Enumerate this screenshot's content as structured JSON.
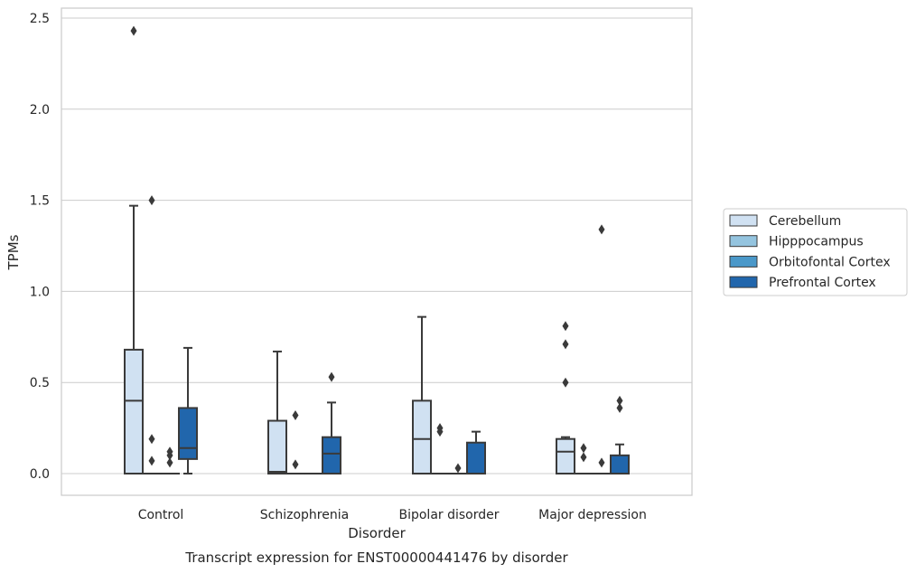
{
  "chart_data": {
    "type": "boxplot",
    "title": "Transcript expression for ENST00000441476 by disorder",
    "xlabel": "Disorder",
    "ylabel": "TPMs",
    "ylim": [
      -0.12,
      2.56
    ],
    "yticks": [
      0.0,
      0.5,
      1.0,
      1.5,
      2.0,
      2.5
    ],
    "ytick_labels": [
      "0.0",
      "0.5",
      "1.0",
      "1.5",
      "2.0",
      "2.5"
    ],
    "grid": "horizontal",
    "legend_position": "right",
    "categories": [
      "Control",
      "Schizophrenia",
      "Bipolar disorder",
      "Major depression"
    ],
    "series": [
      {
        "name": "Cerebellum",
        "color": "#d0e1f2",
        "boxes": [
          {
            "q1": 0.0,
            "median": 0.4,
            "q3": 0.68,
            "whisker_low": 0.0,
            "whisker_high": 1.47,
            "outliers": [
              2.43
            ]
          },
          {
            "q1": 0.0,
            "median": 0.01,
            "q3": 0.29,
            "whisker_low": 0.0,
            "whisker_high": 0.67,
            "outliers": []
          },
          {
            "q1": 0.0,
            "median": 0.19,
            "q3": 0.4,
            "whisker_low": 0.0,
            "whisker_high": 0.86,
            "outliers": []
          },
          {
            "q1": 0.0,
            "median": 0.12,
            "q3": 0.19,
            "whisker_low": 0.0,
            "whisker_high": 0.2,
            "outliers": [
              0.5,
              0.71,
              0.81
            ]
          }
        ]
      },
      {
        "name": "Hipppocampus",
        "color": "#94c4df",
        "boxes": [
          {
            "q1": 0.0,
            "median": 0.0,
            "q3": 0.0,
            "whisker_low": 0.0,
            "whisker_high": 0.0,
            "outliers": [
              0.07,
              0.19,
              1.5
            ]
          },
          {
            "q1": 0.0,
            "median": 0.0,
            "q3": 0.0,
            "whisker_low": 0.0,
            "whisker_high": 0.0,
            "outliers": [
              0.05,
              0.32
            ]
          },
          {
            "q1": 0.0,
            "median": 0.0,
            "q3": 0.0,
            "whisker_low": 0.0,
            "whisker_high": 0.0,
            "outliers": [
              0.23,
              0.25
            ]
          },
          {
            "q1": 0.0,
            "median": 0.0,
            "q3": 0.0,
            "whisker_low": 0.0,
            "whisker_high": 0.0,
            "outliers": [
              0.09,
              0.14
            ]
          }
        ]
      },
      {
        "name": "Orbitofontal Cortex",
        "color": "#4a98c9",
        "boxes": [
          {
            "q1": 0.0,
            "median": 0.0,
            "q3": 0.0,
            "whisker_low": 0.0,
            "whisker_high": 0.0,
            "outliers": [
              0.06,
              0.1,
              0.12
            ]
          },
          {
            "q1": 0.0,
            "median": 0.0,
            "q3": 0.0,
            "whisker_low": 0.0,
            "whisker_high": 0.0,
            "outliers": []
          },
          {
            "q1": 0.0,
            "median": 0.0,
            "q3": 0.0,
            "whisker_low": 0.0,
            "whisker_high": 0.0,
            "outliers": [
              0.03
            ]
          },
          {
            "q1": 0.0,
            "median": 0.0,
            "q3": 0.0,
            "whisker_low": 0.0,
            "whisker_high": 0.0,
            "outliers": [
              0.06,
              1.34
            ]
          }
        ]
      },
      {
        "name": "Prefrontal Cortex",
        "color": "#2166ac",
        "boxes": [
          {
            "q1": 0.08,
            "median": 0.14,
            "q3": 0.36,
            "whisker_low": 0.0,
            "whisker_high": 0.69,
            "outliers": []
          },
          {
            "q1": 0.0,
            "median": 0.11,
            "q3": 0.2,
            "whisker_low": 0.0,
            "whisker_high": 0.39,
            "outliers": [
              0.53
            ]
          },
          {
            "q1": 0.0,
            "median": 0.0,
            "q3": 0.17,
            "whisker_low": 0.0,
            "whisker_high": 0.23,
            "outliers": []
          },
          {
            "q1": 0.0,
            "median": 0.0,
            "q3": 0.1,
            "whisker_low": 0.0,
            "whisker_high": 0.16,
            "outliers": [
              0.36,
              0.4
            ]
          }
        ]
      }
    ]
  }
}
